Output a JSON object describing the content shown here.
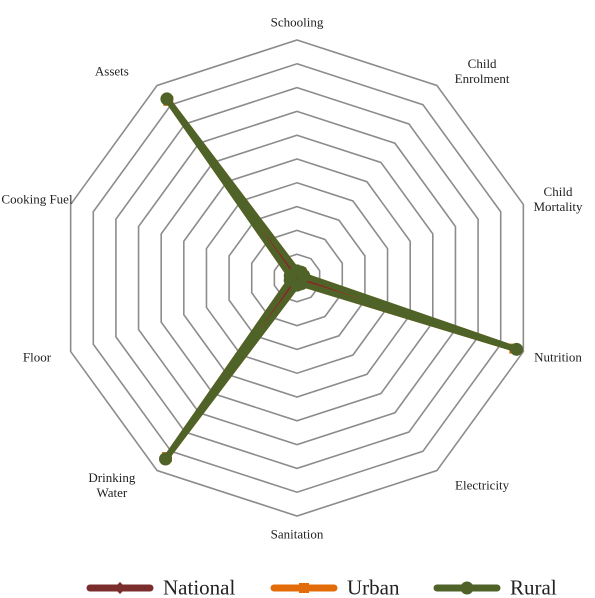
{
  "chart_data": {
    "type": "radar",
    "categories": [
      "Schooling",
      "Child Enrolment",
      "Child Mortality",
      "Nutrition",
      "Electricity",
      "Sanitation",
      "Drinking Water",
      "Floor",
      "Cooking Fuel",
      "Assets"
    ],
    "series": [
      {
        "name": "National",
        "color": "#7b2c2c",
        "marker": "diamond",
        "values": [
          0.02,
          0.02,
          0.02,
          0.32,
          0.02,
          0.02,
          0.3,
          0.02,
          0.02,
          0.3
        ]
      },
      {
        "name": "Urban",
        "color": "#e36c0a",
        "marker": "square",
        "values": [
          0.03,
          0.03,
          0.03,
          0.96,
          0.03,
          0.03,
          0.93,
          0.03,
          0.03,
          0.92
        ]
      },
      {
        "name": "Rural",
        "color": "#4f6228",
        "marker": "circle",
        "values": [
          0.03,
          0.03,
          0.03,
          0.97,
          0.03,
          0.03,
          0.94,
          0.03,
          0.03,
          0.93
        ]
      }
    ],
    "ylim": [
      0,
      1
    ],
    "yticks": [
      0.1,
      0.2,
      0.3,
      0.4,
      0.5,
      0.6,
      0.7,
      0.8,
      0.9,
      1.0
    ],
    "grid": true,
    "legend": "bottom"
  }
}
